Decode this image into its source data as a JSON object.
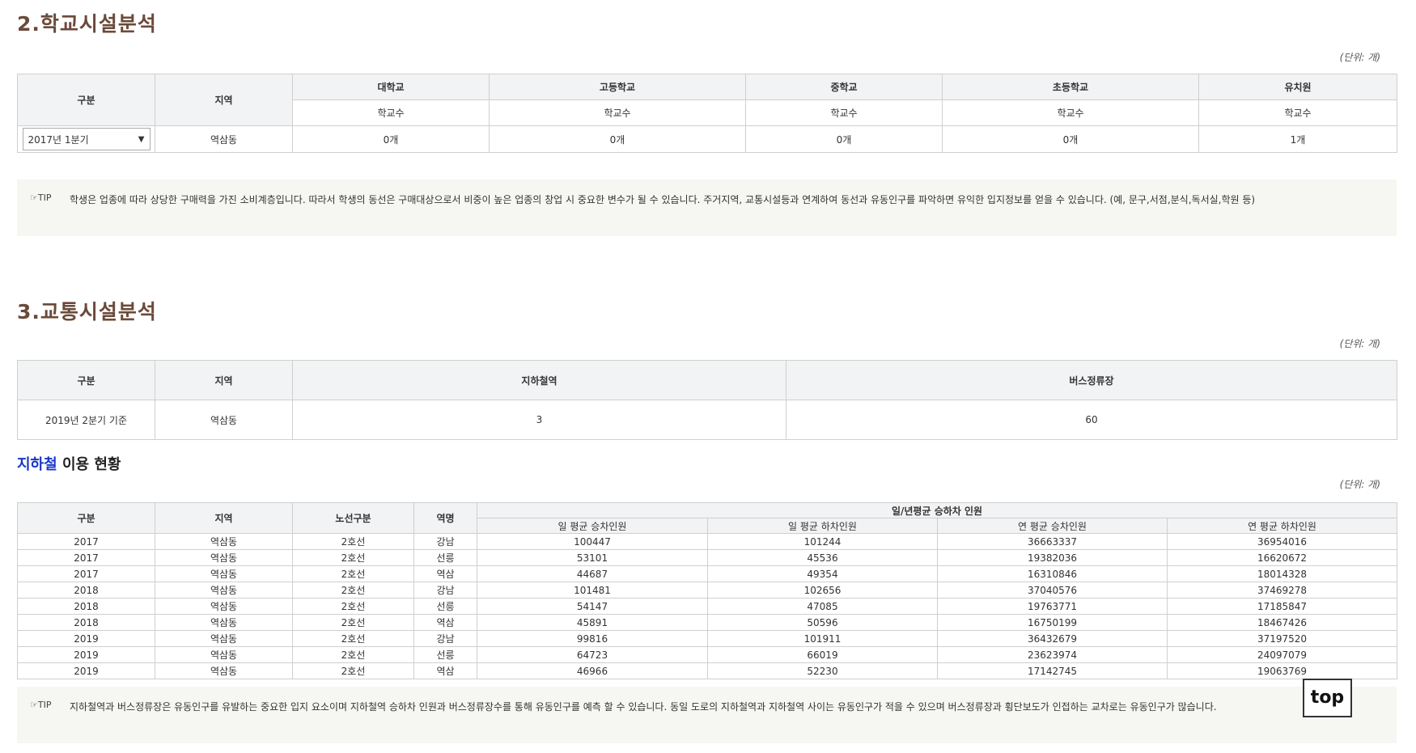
{
  "section2": {
    "title": "2.학교시설분석",
    "unit": "(단위: 개)",
    "headers": {
      "category": "구분",
      "region": "지역",
      "university": "대학교",
      "highschool": "고등학교",
      "middleschool": "중학교",
      "elementary": "초등학교",
      "kindergarten": "유치원"
    },
    "sub_label": "학교수",
    "row": {
      "period": "2017년 1분기",
      "region": "역삼동",
      "university": "0개",
      "highschool": "0개",
      "middleschool": "0개",
      "elementary": "0개",
      "kindergarten": "1개"
    },
    "tip_label": "TIP",
    "tip_text": "학생은 업종에 따라 상당한 구매력을 가진 소비계층입니다. 따라서 학생의 동선은 구매대상으로서 비중이 높은 업종의 창업 시 중요한 변수가 될 수 있습니다. 주거지역, 교통시설등과 연계하여 동선과 유동인구를 파악하면 유익한 입지정보를 얻을 수 있습니다. (예, 문구,서점,분식,독서실,학원 등)"
  },
  "section3": {
    "title": "3.교통시설분석",
    "unit": "(단위: 개)",
    "headers": {
      "category": "구분",
      "region": "지역",
      "subway": "지하철역",
      "bus": "버스정류장"
    },
    "row": {
      "period": "2019년 2분기 기준",
      "region": "역삼동",
      "subway": "3",
      "bus": "60"
    }
  },
  "subway_usage": {
    "title_blue": "지하철",
    "title_rest": " 이용 현황",
    "unit": "(단위: 개)",
    "headers": {
      "category": "구분",
      "region": "지역",
      "line": "노선구분",
      "station": "역명",
      "group": "일/년평균 승하차 인원",
      "day_on": "일 평균 승차인원",
      "day_off": "일 평균 하차인원",
      "year_on": "연 평균 승차인원",
      "year_off": "연 평균 하차인원"
    },
    "rows": [
      [
        "2017",
        "역삼동",
        "2호선",
        "강남",
        "100447",
        "101244",
        "36663337",
        "36954016"
      ],
      [
        "2017",
        "역삼동",
        "2호선",
        "선릉",
        "53101",
        "45536",
        "19382036",
        "16620672"
      ],
      [
        "2017",
        "역삼동",
        "2호선",
        "역삼",
        "44687",
        "49354",
        "16310846",
        "18014328"
      ],
      [
        "2018",
        "역삼동",
        "2호선",
        "강남",
        "101481",
        "102656",
        "37040576",
        "37469278"
      ],
      [
        "2018",
        "역삼동",
        "2호선",
        "선릉",
        "54147",
        "47085",
        "19763771",
        "17185847"
      ],
      [
        "2018",
        "역삼동",
        "2호선",
        "역삼",
        "45891",
        "50596",
        "16750199",
        "18467426"
      ],
      [
        "2019",
        "역삼동",
        "2호선",
        "강남",
        "99816",
        "101911",
        "36432679",
        "37197520"
      ],
      [
        "2019",
        "역삼동",
        "2호선",
        "선릉",
        "64723",
        "66019",
        "23623974",
        "24097079"
      ],
      [
        "2019",
        "역삼동",
        "2호선",
        "역삼",
        "46966",
        "52230",
        "17142745",
        "19063769"
      ]
    ],
    "tip_label": "TIP",
    "tip_text": "지하철역과 버스정류장은 유동인구를 유발하는 중요한 입지 요소이며 지하철역 승하차 인원과 버스정류장수를 통해 유동인구를 예측 할 수 있습니다. 동일 도로의 지하철역과 지하철역 사이는 유동인구가 적을 수 있으며 버스정류장과 횡단보도가 인접하는 교차로는 유동인구가 많습니다."
  },
  "top_button": "top"
}
